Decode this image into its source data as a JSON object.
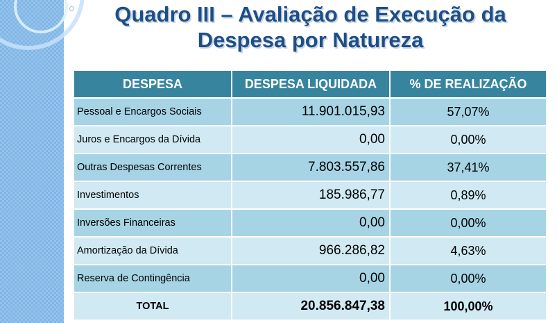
{
  "title": {
    "line1": "Quadro III – Avaliação de Execução da",
    "line2": "Despesa por Natureza"
  },
  "table": {
    "headers": [
      "DESPESA",
      "DESPESA LIQUIDADA",
      "% DE REALIZAÇÃO"
    ],
    "rows": [
      {
        "despesa": "Pessoal e Encargos Sociais",
        "liquidada": "11.901.015,93",
        "realizacao": "57,07%"
      },
      {
        "despesa": "Juros e Encargos da Dívida",
        "liquidada": "0,00",
        "realizacao": "0,00%"
      },
      {
        "despesa": "Outras Despesas Correntes",
        "liquidada": "7.803.557,86",
        "realizacao": "37,41%"
      },
      {
        "despesa": "Investimentos",
        "liquidada": "185.986,77",
        "realizacao": "0,89%"
      },
      {
        "despesa": "Inversões Financeiras",
        "liquidada": "0,00",
        "realizacao": "0,00%"
      },
      {
        "despesa": "Amortização da Dívida",
        "liquidada": "966.286,82",
        "realizacao": "4,63%"
      },
      {
        "despesa": "Reserva de Contingência",
        "liquidada": "0,00",
        "realizacao": "0,00%"
      }
    ],
    "total": {
      "despesa": "TOTAL",
      "liquidada": "20.856.847,38",
      "realizacao": "100,00%"
    }
  },
  "colors": {
    "header_bg": "#37849e",
    "row_dark": "#a7d4e5",
    "row_light": "#d0e9f2",
    "title": "#1f4e86",
    "side_band": "#7fb6e6"
  }
}
